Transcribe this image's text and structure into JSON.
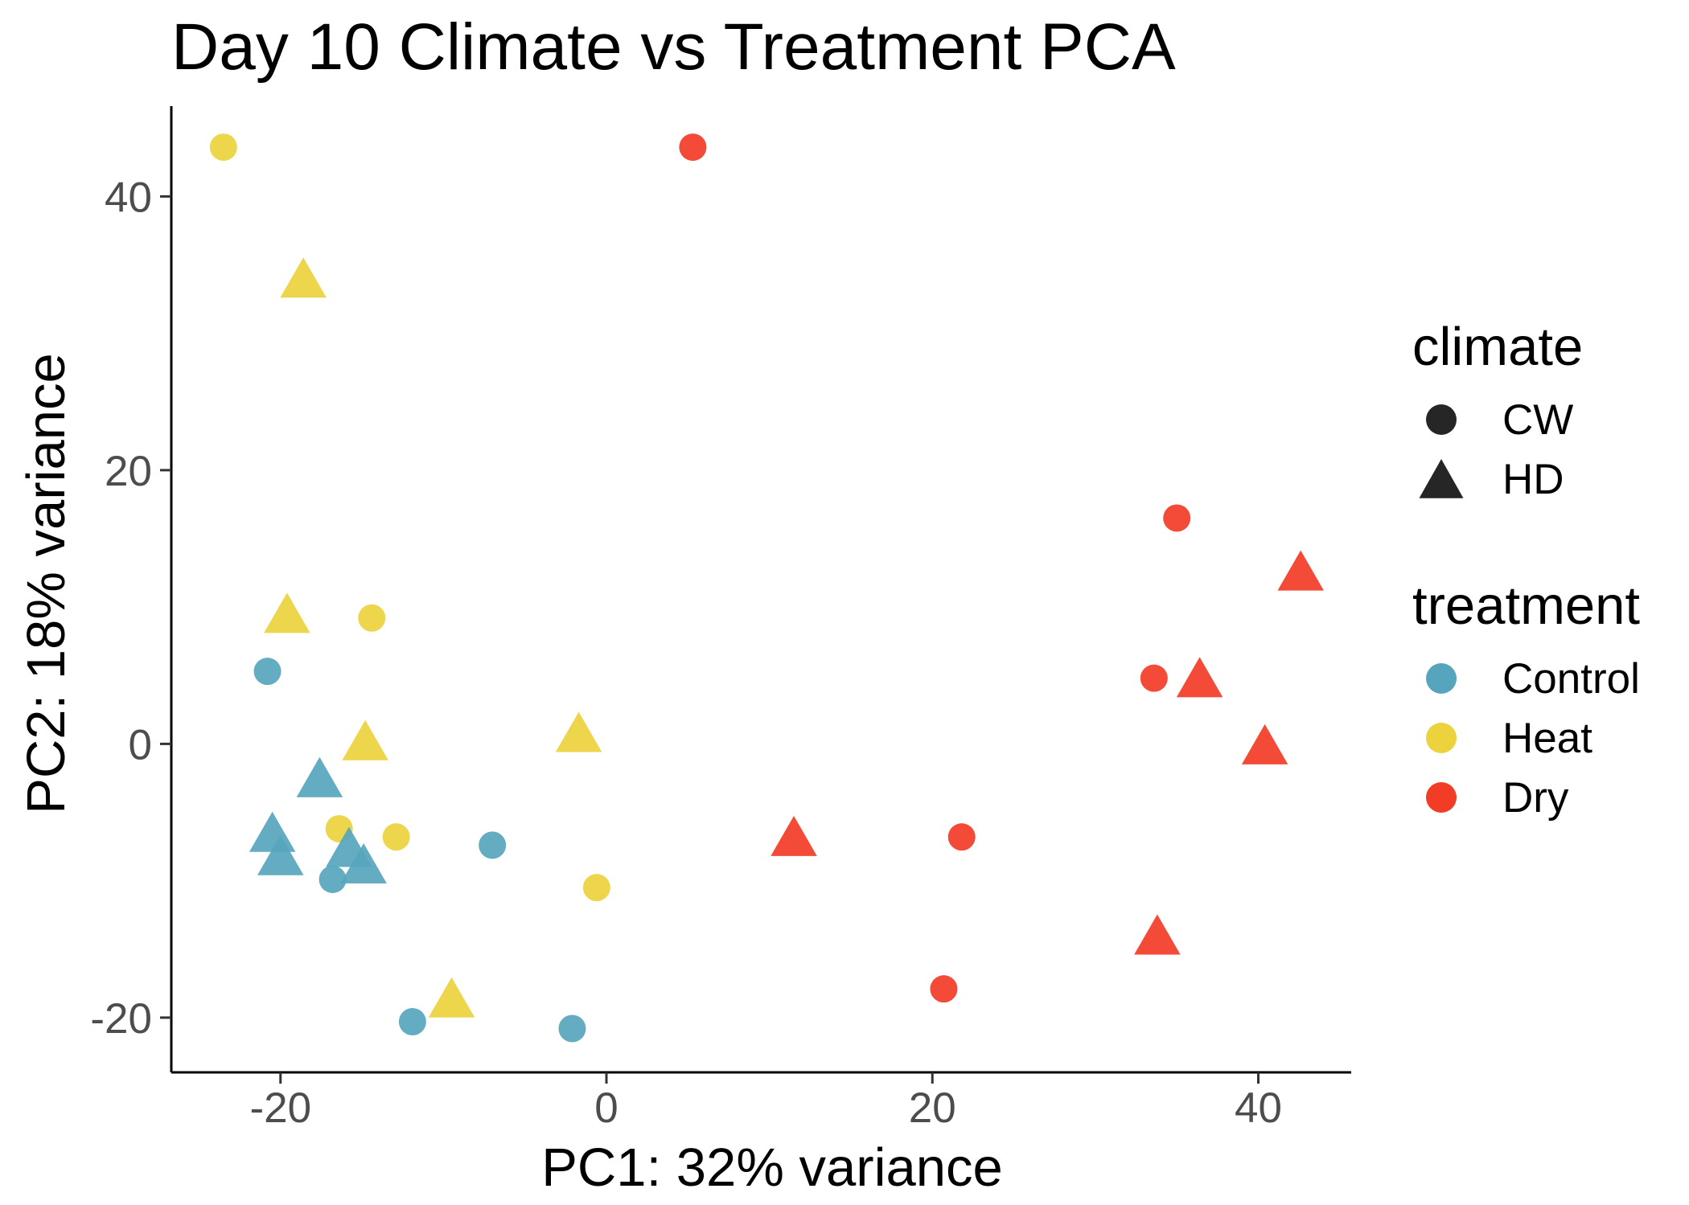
{
  "chart_data": {
    "type": "scatter",
    "title": "Day 10 Climate vs Treatment PCA",
    "xlabel": "PC1: 32% variance",
    "ylabel": "PC2: 18% variance",
    "xlim": [
      -26.7,
      45.7
    ],
    "ylim": [
      -24.0,
      46.6
    ],
    "x_ticks": [
      {
        "value": -20,
        "label": "-20"
      },
      {
        "value": 0,
        "label": "0"
      },
      {
        "value": 20,
        "label": "20"
      },
      {
        "value": 40,
        "label": "40"
      }
    ],
    "y_ticks": [
      {
        "value": -20,
        "label": "-20"
      },
      {
        "value": 0,
        "label": "0"
      },
      {
        "value": 20,
        "label": "20"
      },
      {
        "value": 40,
        "label": "40"
      }
    ],
    "grid": false,
    "legend_position": "right",
    "colors": {
      "Control": "#56a5bd",
      "Heat": "#ecd23d",
      "Dry": "#f23c26",
      "axis": "#000000",
      "legend_shape": "#262626"
    },
    "legends": [
      {
        "title": "climate",
        "entries": [
          {
            "label": "CW",
            "shape": "circle"
          },
          {
            "label": "HD",
            "shape": "triangle"
          }
        ]
      },
      {
        "title": "treatment",
        "entries": [
          {
            "label": "Control",
            "color": "Control"
          },
          {
            "label": "Heat",
            "color": "Heat"
          },
          {
            "label": "Dry",
            "color": "Dry"
          }
        ]
      }
    ],
    "points": [
      {
        "x": -23.5,
        "y": 43.6,
        "climate": "CW",
        "treatment": "Heat"
      },
      {
        "x": -18.6,
        "y": 34.0,
        "climate": "HD",
        "treatment": "Heat"
      },
      {
        "x": -19.6,
        "y": 9.5,
        "climate": "HD",
        "treatment": "Heat"
      },
      {
        "x": -14.4,
        "y": 9.2,
        "climate": "CW",
        "treatment": "Heat"
      },
      {
        "x": -14.8,
        "y": 0.2,
        "climate": "HD",
        "treatment": "Heat"
      },
      {
        "x": -16.4,
        "y": -6.2,
        "climate": "CW",
        "treatment": "Heat"
      },
      {
        "x": -12.9,
        "y": -6.8,
        "climate": "CW",
        "treatment": "Heat"
      },
      {
        "x": -1.7,
        "y": 0.8,
        "climate": "HD",
        "treatment": "Heat"
      },
      {
        "x": -0.6,
        "y": -10.5,
        "climate": "CW",
        "treatment": "Heat"
      },
      {
        "x": -9.5,
        "y": -18.6,
        "climate": "HD",
        "treatment": "Heat"
      },
      {
        "x": -20.8,
        "y": 5.3,
        "climate": "CW",
        "treatment": "Control"
      },
      {
        "x": -17.6,
        "y": -2.5,
        "climate": "HD",
        "treatment": "Control"
      },
      {
        "x": -20.5,
        "y": -6.5,
        "climate": "HD",
        "treatment": "Control"
      },
      {
        "x": -20.0,
        "y": -8.2,
        "climate": "HD",
        "treatment": "Control"
      },
      {
        "x": -15.8,
        "y": -7.6,
        "climate": "HD",
        "treatment": "Control"
      },
      {
        "x": -14.9,
        "y": -8.8,
        "climate": "HD",
        "treatment": "Control"
      },
      {
        "x": -16.8,
        "y": -9.9,
        "climate": "CW",
        "treatment": "Control"
      },
      {
        "x": -7.0,
        "y": -7.4,
        "climate": "CW",
        "treatment": "Control"
      },
      {
        "x": -11.9,
        "y": -20.3,
        "climate": "CW",
        "treatment": "Control"
      },
      {
        "x": -2.1,
        "y": -20.8,
        "climate": "CW",
        "treatment": "Control"
      },
      {
        "x": 5.3,
        "y": 43.6,
        "climate": "CW",
        "treatment": "Dry"
      },
      {
        "x": 35.0,
        "y": 16.5,
        "climate": "CW",
        "treatment": "Dry"
      },
      {
        "x": 42.6,
        "y": 12.6,
        "climate": "HD",
        "treatment": "Dry"
      },
      {
        "x": 33.6,
        "y": 4.8,
        "climate": "CW",
        "treatment": "Dry"
      },
      {
        "x": 36.4,
        "y": 4.8,
        "climate": "HD",
        "treatment": "Dry"
      },
      {
        "x": 40.4,
        "y": -0.1,
        "climate": "HD",
        "treatment": "Dry"
      },
      {
        "x": 11.5,
        "y": -6.8,
        "climate": "HD",
        "treatment": "Dry"
      },
      {
        "x": 21.8,
        "y": -6.8,
        "climate": "CW",
        "treatment": "Dry"
      },
      {
        "x": 33.8,
        "y": -14.0,
        "climate": "HD",
        "treatment": "Dry"
      },
      {
        "x": 20.7,
        "y": -17.9,
        "climate": "CW",
        "treatment": "Dry"
      }
    ]
  }
}
